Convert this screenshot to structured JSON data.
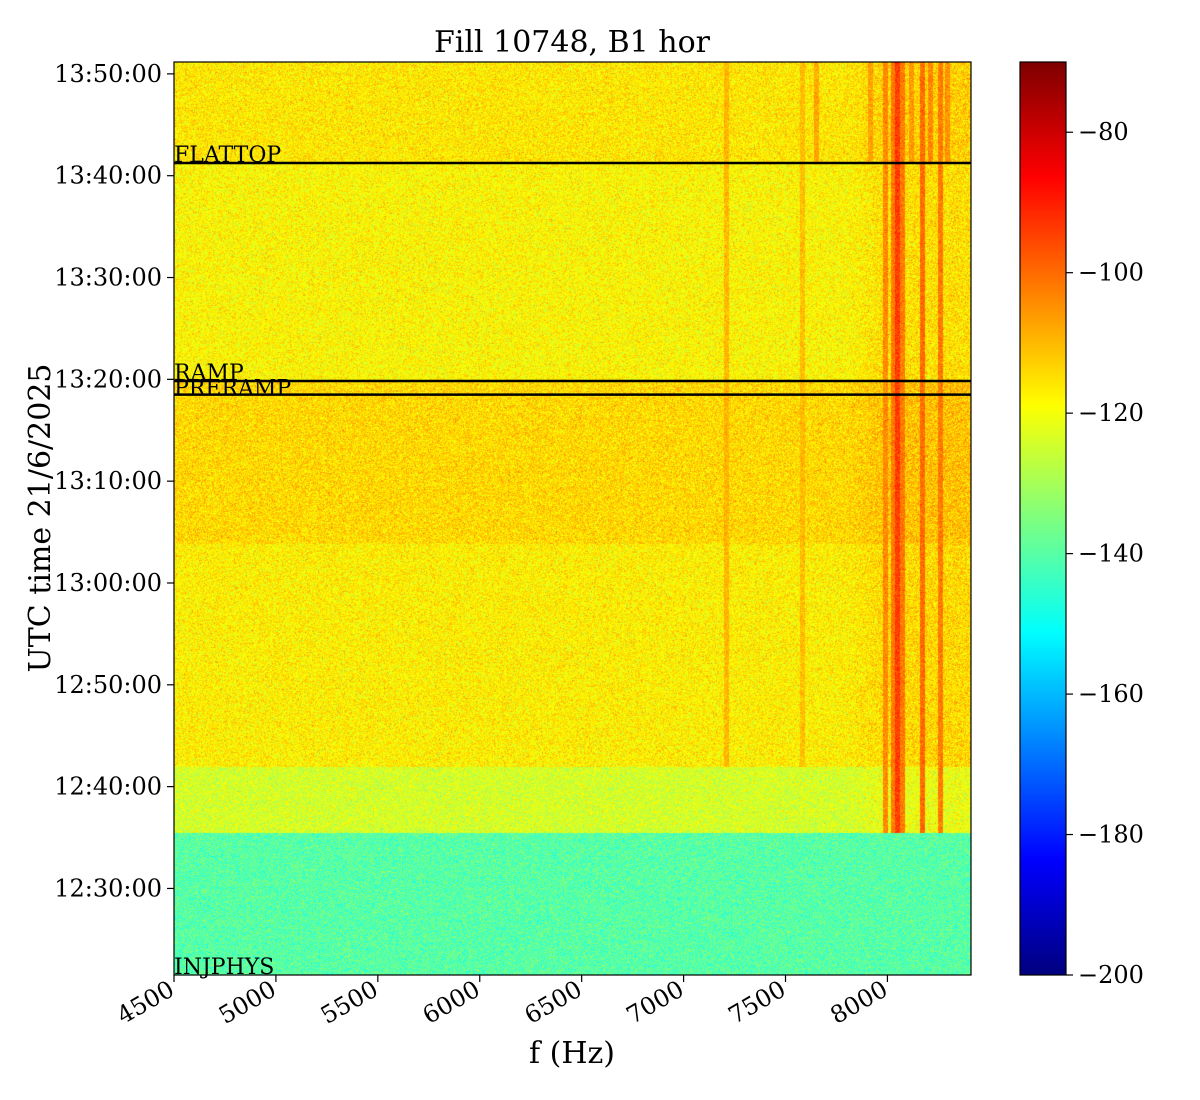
{
  "chart_data": {
    "type": "heatmap",
    "title": "Fill 10748, B1 hor",
    "xlabel": "f (Hz)",
    "ylabel": "UTC time 21/6/2025",
    "xlim": [
      4500,
      8410
    ],
    "x_ticks": [
      4500,
      5000,
      5500,
      6000,
      6500,
      7000,
      7500,
      8000
    ],
    "x_tick_labels": [
      "4500",
      "5000",
      "5500",
      "6000",
      "6500",
      "7000",
      "7500",
      "8000"
    ],
    "ylim": [
      "12:21:30",
      "13:51:10"
    ],
    "y_ticks": [
      "12:30:00",
      "12:40:00",
      "12:50:00",
      "13:00:00",
      "13:10:00",
      "13:20:00",
      "13:30:00",
      "13:40:00",
      "13:50:00"
    ],
    "y_tick_labels": [
      "12:30:00",
      "12:40:00",
      "12:50:00",
      "13:00:00",
      "13:10:00",
      "13:20:00",
      "13:30:00",
      "13:40:00",
      "13:50:00"
    ],
    "colorbar": {
      "colormap": "jet",
      "range": [
        -200,
        -70
      ],
      "ticks": [
        -200,
        -180,
        -160,
        -140,
        -120,
        -100,
        -80
      ],
      "tick_labels": [
        "−200",
        "−180",
        "−160",
        "−140",
        "−120",
        "−100",
        "−80"
      ]
    },
    "markers": [
      {
        "label": "FLATTOP",
        "time": "13:41:15"
      },
      {
        "label": "RAMP",
        "time": "13:19:50"
      },
      {
        "label": "PRERAMP",
        "time": "13:18:30"
      },
      {
        "label": "INJPHYS",
        "time": "12:21:30"
      }
    ],
    "background_levels_db": [
      {
        "from": "12:21:30",
        "to": "12:35:30",
        "level": -140
      },
      {
        "from": "12:35:30",
        "to": "12:42:00",
        "level": -124
      },
      {
        "from": "12:42:00",
        "to": "13:03:50",
        "level": -117
      },
      {
        "from": "13:03:50",
        "to": "13:19:50",
        "level": -114
      },
      {
        "from": "13:19:50",
        "to": "13:41:15",
        "level": -118
      },
      {
        "from": "13:41:15",
        "to": "13:51:10",
        "level": -116
      }
    ],
    "lines_hz": [
      {
        "freq": 8045,
        "level": -94,
        "from": "12:35:30",
        "to": "13:51:10"
      },
      {
        "freq": 8025,
        "level": -102,
        "from": "12:35:30",
        "to": "13:51:10"
      },
      {
        "freq": 8070,
        "level": -102,
        "from": "12:35:30",
        "to": "13:51:10"
      },
      {
        "freq": 7990,
        "level": -104,
        "from": "12:35:30",
        "to": "13:51:10"
      },
      {
        "freq": 8170,
        "level": -100,
        "from": "12:35:30",
        "to": "13:51:10"
      },
      {
        "freq": 8260,
        "level": -102,
        "from": "12:35:30",
        "to": "13:51:10"
      },
      {
        "freq": 8210,
        "level": -104,
        "from": "13:41:15",
        "to": "13:51:10"
      },
      {
        "freq": 8290,
        "level": -105,
        "from": "13:41:15",
        "to": "13:51:10"
      },
      {
        "freq": 8115,
        "level": -106,
        "from": "13:41:15",
        "to": "13:51:10"
      },
      {
        "freq": 7915,
        "level": -107,
        "from": "13:41:15",
        "to": "13:51:10"
      },
      {
        "freq": 7650,
        "level": -108,
        "from": "13:41:15",
        "to": "13:51:10"
      },
      {
        "freq": 7210,
        "level": -110,
        "from": "12:42:00",
        "to": "13:51:10"
      },
      {
        "freq": 7580,
        "level": -111,
        "from": "12:42:00",
        "to": "13:51:10"
      }
    ],
    "broadband_region": {
      "from_hz": 7800,
      "to_hz": 8410,
      "from": "12:35:30",
      "to": "13:51:10",
      "boost_db": 6
    }
  }
}
